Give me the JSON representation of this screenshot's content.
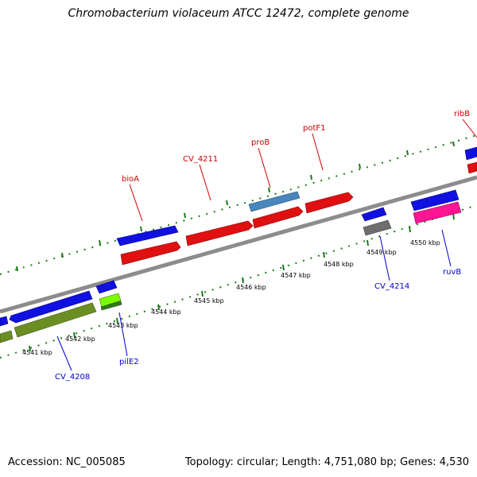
{
  "title": "Chromobacterium violaceum ATCC 12472, complete genome",
  "footer": {
    "accession": "Accession: NC_005085",
    "summary": "Topology: circular; Length: 4,751,080 bp; Genes: 4,530"
  },
  "colors": {
    "backbone": "#8c8c8c",
    "tick": "#1a7a1a",
    "forward_gene_blue": "#1010e0",
    "forward_gene_red": "#e01010",
    "steelblue": "#4a86be",
    "green_gene": "#6b8e23",
    "lime_gene": "#7cfc00",
    "gray_gene": "#6e6e6e",
    "pink_gene": "#ff1493",
    "label_red": "#cc0000",
    "label_blue": "#0000cc"
  },
  "scale": {
    "ticks": [
      "4541 kbp",
      "4542 kbp",
      "4543 kbp",
      "4544 kbp",
      "4545 kbp",
      "4546 kbp",
      "4547 kbp",
      "4548 kbp",
      "4549 kbp",
      "4550 kbp"
    ]
  },
  "genes": {
    "bioA": "bioA",
    "CV_4211": "CV_4211",
    "proB": "proB",
    "potF1": "potF1",
    "ribB": "ribB",
    "CV_4208": "CV_4208",
    "pilE2": "pilE2",
    "CV_4214": "CV_4214",
    "ruvB": "ruvB"
  }
}
